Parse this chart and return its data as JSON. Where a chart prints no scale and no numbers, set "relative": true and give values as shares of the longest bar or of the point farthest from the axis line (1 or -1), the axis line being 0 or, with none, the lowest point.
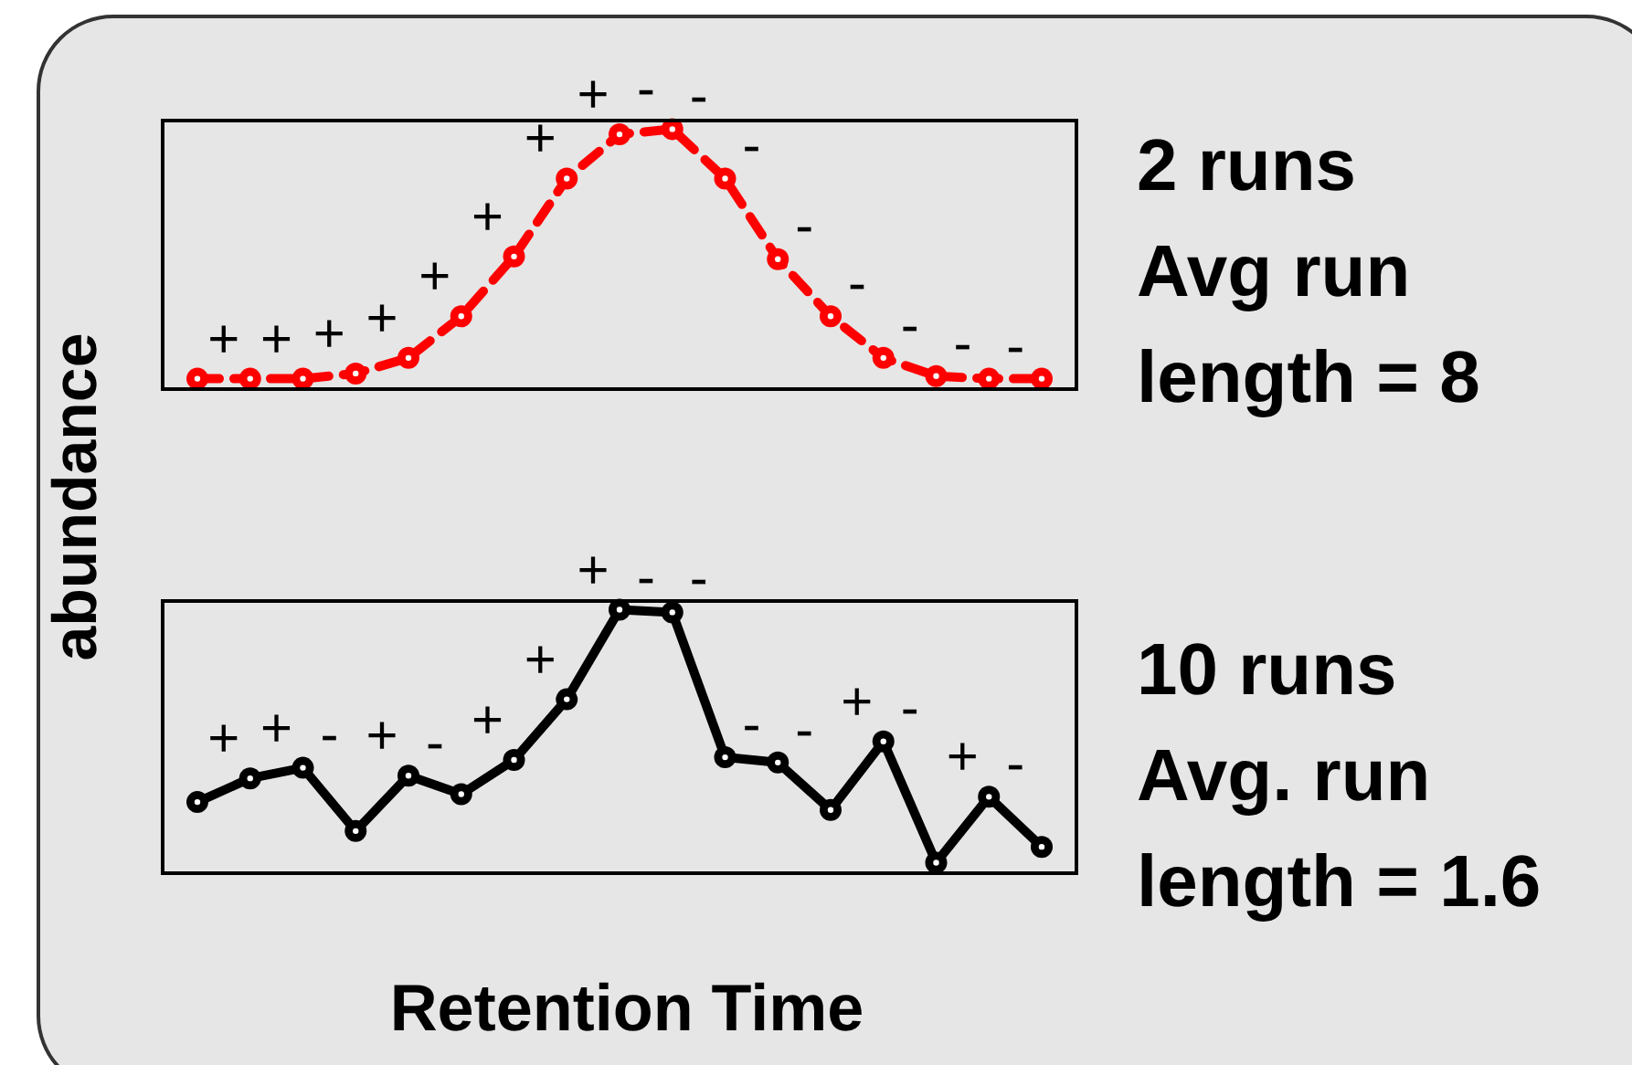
{
  "chart_data": [
    {
      "type": "line",
      "relative": true,
      "ylabel": "abundance",
      "marker": "circle",
      "line_style": "dashed",
      "categories": [
        null,
        null,
        null,
        null,
        null,
        null,
        null,
        null,
        null,
        null,
        null,
        null,
        null,
        null,
        null,
        null,
        null
      ],
      "series": [
        {
          "color": "#ff0000",
          "values": [
            0.04,
            0.04,
            0.04,
            0.06,
            0.12,
            0.28,
            0.51,
            0.81,
            0.98,
            1,
            0.81,
            0.5,
            0.28,
            0.12,
            0.05,
            0.04,
            0.04
          ]
        }
      ],
      "annotations": [
        "+",
        "+",
        "+",
        "+",
        "+",
        "+",
        "+",
        "+",
        "-",
        "-",
        "-",
        "-",
        "-",
        "-",
        "-",
        "-",
        "2 runs",
        "Avg run",
        "length = 8"
      ]
    },
    {
      "type": "line",
      "relative": true,
      "xlabel": "Retention Time",
      "marker": "circle",
      "line_style": "solid",
      "categories": [
        null,
        null,
        null,
        null,
        null,
        null,
        null,
        null,
        null,
        null,
        null,
        null,
        null,
        null,
        null,
        null,
        null
      ],
      "series": [
        {
          "color": "#000000",
          "values": [
            0.27,
            0.36,
            0.4,
            0.16,
            0.37,
            0.3,
            0.43,
            0.66,
            1,
            0.99,
            0.44,
            0.42,
            0.24,
            0.5,
            0.04,
            0.29,
            0.1
          ]
        }
      ],
      "annotations": [
        "+",
        "+",
        "-",
        "+",
        "-",
        "+",
        "+",
        "+",
        "-",
        "-",
        "-",
        "-",
        "+",
        "-",
        "+",
        "-",
        "10 runs",
        "Avg. run",
        "length = 1.6"
      ]
    }
  ]
}
